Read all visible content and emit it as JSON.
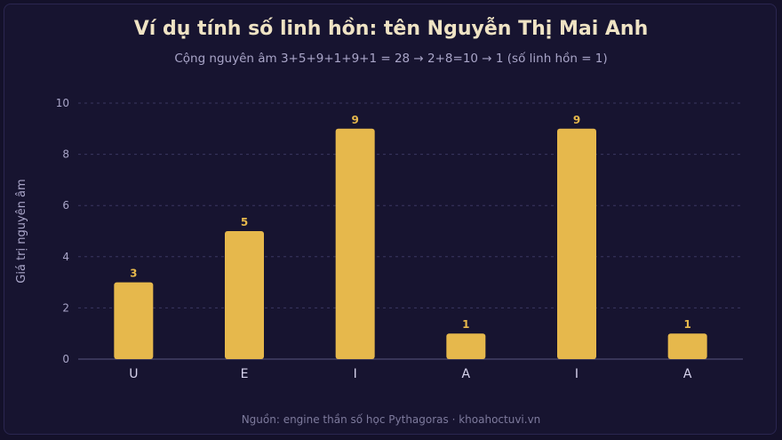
{
  "chart_data": {
    "type": "bar",
    "title": "Ví dụ tính số linh hồn: tên Nguyễn Thị Mai Anh",
    "subtitle": "Cộng nguyên âm 3+5+9+1+9+1 = 28 → 2+8=10 → 1 (số linh hồn = 1)",
    "ylabel": "Giá trị nguyên âm",
    "xlabel": "",
    "categories": [
      "U",
      "E",
      "I",
      "A",
      "I",
      "A"
    ],
    "values": [
      3,
      5,
      9,
      1,
      9,
      1
    ],
    "ylim": [
      0,
      10
    ],
    "yticks": [
      0,
      2,
      4,
      6,
      8,
      10
    ],
    "grid": true,
    "bar_color": "#e6b84c",
    "source": "Nguồn: engine thần số học Pythagoras · khoahoctuvi.vn"
  }
}
